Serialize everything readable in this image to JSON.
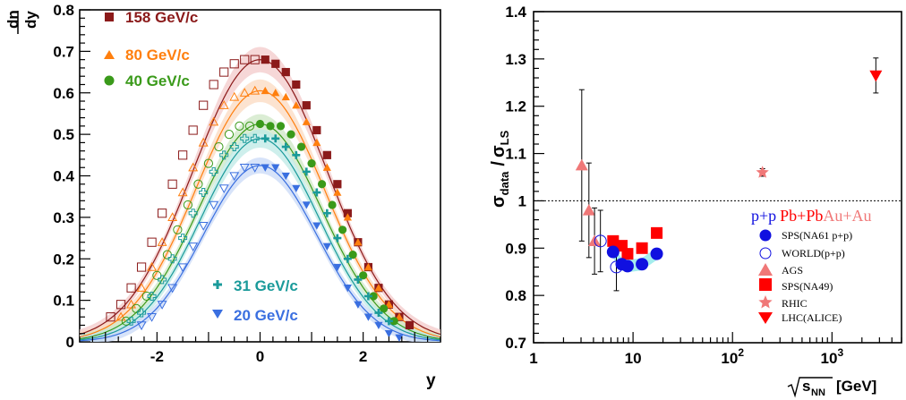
{
  "chart_data": [
    {
      "type": "scatter",
      "xlabel": "y",
      "ylabel": "dn/dy",
      "ylabel_top": "dn",
      "ylabel_bottom": "dy",
      "xlim": [
        -3.5,
        3.5
      ],
      "ylim": [
        0,
        0.8
      ],
      "x_ticks": [
        -2,
        0,
        2
      ],
      "y_ticks": [
        0,
        0.1,
        0.2,
        0.3,
        0.4,
        0.5,
        0.6,
        0.7,
        0.8
      ],
      "legend_placement": "top-left and bottom-center",
      "series": [
        {
          "name": "158 GeV/c",
          "color": "#8b1a1a",
          "marker": "square",
          "peak": 0.68,
          "width": 1.3,
          "x": [
            -2.9,
            -2.7,
            -2.5,
            -2.3,
            -2.1,
            -1.9,
            -1.7,
            -1.5,
            -1.3,
            -1.1,
            -0.9,
            -0.7,
            -0.5,
            -0.3,
            -0.1,
            0.1,
            0.3,
            0.5,
            0.7,
            0.9,
            1.1,
            1.3,
            1.5,
            1.7,
            1.9,
            2.1,
            2.3,
            2.5,
            2.7,
            2.9
          ],
          "y": [
            0.06,
            0.09,
            0.13,
            0.18,
            0.24,
            0.31,
            0.38,
            0.45,
            0.51,
            0.57,
            0.62,
            0.65,
            0.67,
            0.68,
            0.68,
            0.68,
            0.67,
            0.65,
            0.62,
            0.57,
            0.51,
            0.45,
            0.38,
            0.31,
            0.24,
            0.18,
            0.13,
            0.09,
            0.06,
            0.04
          ]
        },
        {
          "name": "80 GeV/c",
          "color": "#ff7f0e",
          "marker": "triangle",
          "peak": 0.605,
          "width": 1.25,
          "x": [
            -2.7,
            -2.5,
            -2.3,
            -2.1,
            -1.9,
            -1.7,
            -1.5,
            -1.3,
            -1.1,
            -0.9,
            -0.7,
            -0.5,
            -0.3,
            -0.1,
            0.1,
            0.3,
            0.5,
            0.7,
            0.9,
            1.1,
            1.3,
            1.5,
            1.7,
            1.9,
            2.1,
            2.3,
            2.5,
            2.7
          ],
          "y": [
            0.06,
            0.09,
            0.13,
            0.18,
            0.24,
            0.3,
            0.36,
            0.42,
            0.48,
            0.53,
            0.57,
            0.59,
            0.6,
            0.605,
            0.605,
            0.6,
            0.59,
            0.57,
            0.53,
            0.48,
            0.42,
            0.36,
            0.3,
            0.24,
            0.18,
            0.13,
            0.09,
            0.06
          ]
        },
        {
          "name": "40 GeV/c",
          "color": "#3a9a1a",
          "marker": "circle",
          "peak": 0.525,
          "width": 1.2,
          "x": [
            -2.6,
            -2.4,
            -2.2,
            -2.0,
            -1.8,
            -1.6,
            -1.4,
            -1.2,
            -1.0,
            -0.8,
            -0.6,
            -0.4,
            -0.2,
            0.0,
            0.2,
            0.4,
            0.6,
            0.8,
            1.0,
            1.2,
            1.4,
            1.6,
            1.8,
            2.0,
            2.2,
            2.4,
            2.6
          ],
          "y": [
            0.05,
            0.08,
            0.11,
            0.16,
            0.21,
            0.27,
            0.33,
            0.38,
            0.43,
            0.47,
            0.5,
            0.52,
            0.52,
            0.525,
            0.52,
            0.52,
            0.5,
            0.47,
            0.43,
            0.38,
            0.33,
            0.27,
            0.21,
            0.16,
            0.11,
            0.08,
            0.05
          ]
        },
        {
          "name": "31 GeV/c",
          "color": "#1a9a9a",
          "marker": "cross",
          "peak": 0.49,
          "width": 1.15,
          "x": [
            -2.5,
            -2.3,
            -2.1,
            -1.9,
            -1.7,
            -1.5,
            -1.3,
            -1.1,
            -0.9,
            -0.7,
            -0.5,
            -0.3,
            -0.1,
            0.1,
            0.3,
            0.5,
            0.7,
            0.9,
            1.1,
            1.3,
            1.5,
            1.7,
            1.9,
            2.1,
            2.3,
            2.5
          ],
          "y": [
            0.05,
            0.07,
            0.11,
            0.15,
            0.2,
            0.25,
            0.31,
            0.36,
            0.41,
            0.45,
            0.47,
            0.49,
            0.49,
            0.49,
            0.49,
            0.47,
            0.45,
            0.41,
            0.36,
            0.31,
            0.25,
            0.2,
            0.15,
            0.11,
            0.07,
            0.05
          ]
        },
        {
          "name": "20 GeV/c",
          "color": "#3a6fe0",
          "marker": "triangle-down",
          "peak": 0.425,
          "width": 1.1,
          "x": [
            -2.3,
            -2.1,
            -1.9,
            -1.7,
            -1.5,
            -1.3,
            -1.1,
            -0.9,
            -0.7,
            -0.5,
            -0.3,
            -0.1,
            0.1,
            0.3,
            0.5,
            0.7,
            0.9,
            1.1,
            1.3,
            1.5,
            1.7,
            1.9,
            2.1,
            2.3,
            2.5,
            2.7
          ],
          "y": [
            0.04,
            0.06,
            0.09,
            0.13,
            0.18,
            0.23,
            0.28,
            0.33,
            0.37,
            0.4,
            0.42,
            0.42,
            0.42,
            0.42,
            0.4,
            0.37,
            0.33,
            0.28,
            0.23,
            0.18,
            0.13,
            0.09,
            0.06,
            0.04,
            0.02,
            0.01
          ]
        }
      ]
    },
    {
      "type": "scatter",
      "xlabel": "√sNN [GeV]",
      "xlabel_main": "s",
      "xlabel_sub": "NN",
      "xlabel_unit": "[GeV]",
      "ylabel": "σdata / σLS",
      "ylabel_num": "σ",
      "ylabel_num_sub": "data",
      "ylabel_slash": "/",
      "ylabel_den": "σ",
      "ylabel_den_sub": "LS",
      "x_scale": "log",
      "xlim": [
        1,
        5000
      ],
      "ylim": [
        0.7,
        1.4
      ],
      "x_ticks": [
        "1",
        "10",
        "10^2",
        "10^3"
      ],
      "y_ticks": [
        0.7,
        0.8,
        0.9,
        1,
        1.1,
        1.2,
        1.3,
        1.4
      ],
      "reference_line": 1.0,
      "legend_placement": "right",
      "legend_header": {
        "pp": "p+p",
        "pbpb": "Pb+Pb",
        "auau": "Au+Au"
      },
      "series": [
        {
          "name": "SPS(NA61 p+p)",
          "color": "#1010e0",
          "marker": "circle",
          "x": [
            6.3,
            7.7,
            8.8,
            12.3,
            17.3
          ],
          "y": [
            0.892,
            0.866,
            0.862,
            0.866,
            0.888
          ]
        },
        {
          "name": "WORLD(p+p)",
          "color": "#1010e0",
          "marker": "open-circle",
          "x": [
            4.7,
            6.8
          ],
          "y": [
            0.915,
            0.86
          ],
          "err": [
            0.065,
            0.05
          ]
        },
        {
          "name": "AGS",
          "color": "#f07878",
          "marker": "triangle",
          "x": [
            3.05,
            3.6,
            4.1
          ],
          "y": [
            1.075,
            0.98,
            0.915
          ],
          "err": [
            0.16,
            0.1,
            0.07
          ]
        },
        {
          "name": "SPS(NA49)",
          "color": "#ff0000",
          "marker": "square",
          "x": [
            6.3,
            7.7,
            8.8,
            12.3,
            17.3
          ],
          "y": [
            0.915,
            0.905,
            0.888,
            0.9,
            0.932
          ]
        },
        {
          "name": "RHIC",
          "color": "#f07878",
          "marker": "star",
          "x": [
            200
          ],
          "y": [
            1.06
          ],
          "err": [
            0.008
          ]
        },
        {
          "name": "LHC(ALICE)",
          "color": "#ff0000",
          "marker": "triangle-down",
          "x": [
            2760
          ],
          "y": [
            1.265
          ],
          "err": [
            0.037
          ]
        }
      ]
    }
  ]
}
